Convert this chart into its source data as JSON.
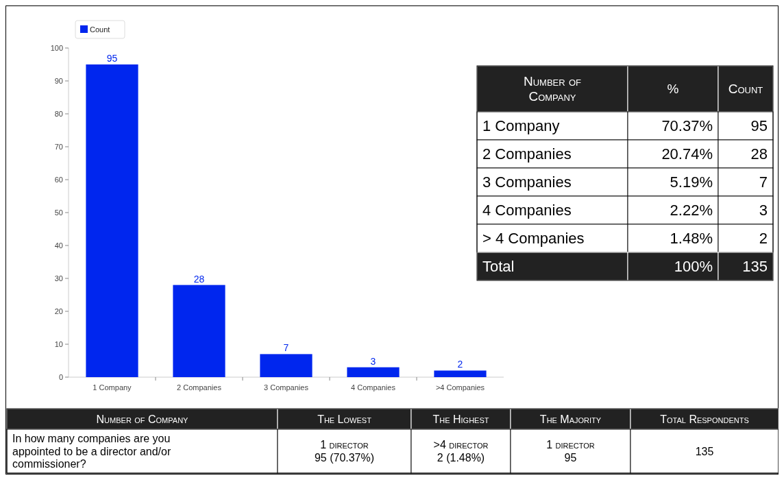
{
  "chart_data": [
    {
      "type": "bar",
      "categories": [
        "1 Company",
        "2 Companies",
        "3 Companies",
        "4 Companies",
        ">4 Companies"
      ],
      "series": [
        {
          "name": "Count",
          "color": "#0026ee",
          "values": [
            95,
            28,
            7,
            3,
            2
          ]
        }
      ],
      "ylim": [
        0,
        100
      ],
      "yticks": [
        0,
        10,
        20,
        30,
        40,
        50,
        60,
        70,
        80,
        90,
        100
      ],
      "data_labels": true,
      "legend": "top left",
      "grid": false
    },
    {
      "type": "other",
      "annotations": [
        "Number of Company",
        "%",
        "Count",
        "1 Company",
        "70.37%",
        "95",
        "2 Companies",
        "20.74%",
        "28",
        "3 Companies",
        "5.19%",
        "7",
        "4 Companies",
        "2.22%",
        "3",
        " > 4 Companies",
        "1.48%",
        "2",
        "Total",
        "100%",
        "135"
      ]
    },
    {
      "type": "other",
      "annotations": [
        "Number of Company",
        "The Lowest",
        "The Highest",
        "The Majority",
        "Total Respondents",
        "In how many companies are you appointed to be a director and/or commissioner?",
        "1 director\n95 (70.37%)",
        ">4 director\n2 (1.48%)",
        "1 director\n95",
        "135"
      ]
    }
  ]
}
